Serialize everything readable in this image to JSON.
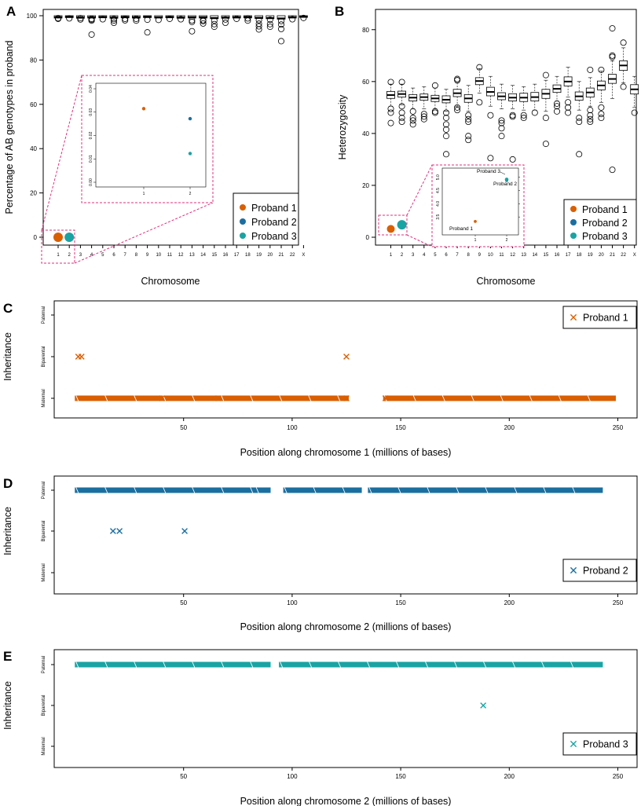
{
  "colors": {
    "proband1": "#D95F02",
    "proband2": "#1B6FA0",
    "proband3": "#1AA3A3",
    "inset_border": "#E0307A"
  },
  "chart_data": [
    {
      "id": "A",
      "type": "box",
      "panel_label": "A",
      "xlabel": "Chromosome",
      "ylabel": "Percentage of AB genotypes in proband",
      "ylim": [
        0,
        100
      ],
      "yticks": [
        0,
        20,
        40,
        60,
        80,
        100
      ],
      "categories": [
        "1",
        "2",
        "3",
        "4",
        "5",
        "6",
        "7",
        "8",
        "9",
        "10",
        "11",
        "12",
        "13",
        "14",
        "15",
        "16",
        "17",
        "18",
        "19",
        "20",
        "21",
        "22",
        "X"
      ],
      "medians": [
        99.3,
        99.5,
        99.2,
        99.3,
        99.4,
        99.2,
        99.4,
        99.3,
        99.5,
        99.3,
        99.4,
        99.2,
        99.3,
        99.3,
        99.0,
        99.2,
        99.3,
        99.4,
        99.1,
        99.0,
        98.8,
        99.3,
        99.6
      ],
      "outliers": [
        [
          98.6,
          98.9
        ],
        [
          98.8
        ],
        [
          98.3,
          98.9
        ],
        [
          97.8,
          98.2,
          98.6,
          91.5
        ],
        [
          98.4
        ],
        [
          98.5,
          96.8,
          97.8
        ],
        [
          98.6,
          97.9
        ],
        [
          98.6,
          97.8
        ],
        [
          98.2,
          92.5
        ],
        [
          98.1
        ],
        [
          98.6
        ],
        [
          98.4
        ],
        [
          97.9,
          97.2,
          93.0
        ],
        [
          98.0,
          96.5,
          97.6
        ],
        [
          97.8,
          96.2,
          95.0
        ],
        [
          98.3,
          96.8
        ],
        [
          98.6
        ],
        [
          98.8,
          97.8
        ],
        [
          98.0,
          96.4,
          95.2,
          93.8
        ],
        [
          98.2,
          96.2,
          95.0
        ],
        [
          97.6,
          96.0,
          94.0,
          88.5
        ],
        [
          98.4
        ],
        [
          99.0
        ]
      ],
      "probands": [
        {
          "name": "Proband 1",
          "chromosome": "1",
          "value": 0.0
        },
        {
          "name": "Proband 3",
          "chromosome": "2",
          "value": 0.0
        }
      ],
      "legend": [
        "Proband 1",
        "Proband 2",
        "Proband 3"
      ],
      "inset": {
        "ylim": [
          0,
          0.04
        ],
        "yticks": [
          "0.00",
          "0.01",
          "0.02",
          "0.03",
          "0.04"
        ],
        "xticks": [
          "1",
          "2"
        ],
        "points": [
          {
            "name": "Proband 1",
            "x": 1,
            "y": 0.0315
          },
          {
            "name": "Proband 2",
            "x": 2,
            "y": 0.0272
          },
          {
            "name": "Proband 3",
            "x": 2,
            "y": 0.0123
          }
        ]
      }
    },
    {
      "id": "B",
      "type": "box",
      "panel_label": "B",
      "xlabel": "Chromosome",
      "ylabel": "Heterozygosity",
      "ylim": [
        0,
        85
      ],
      "yticks": [
        0,
        20,
        40,
        60,
        80
      ],
      "categories": [
        "1",
        "2",
        "3",
        "4",
        "5",
        "6",
        "7",
        "8",
        "9",
        "10",
        "11",
        "12",
        "13",
        "14",
        "15",
        "16",
        "17",
        "18",
        "19",
        "20",
        "21",
        "22",
        "X"
      ],
      "boxes": [
        {
          "q1": 53.5,
          "median": 54.8,
          "q3": 56.2,
          "lo": 50.5,
          "hi": 59.0,
          "out": [
            59.8,
            49.5,
            48.0,
            44.0
          ]
        },
        {
          "q1": 54.0,
          "median": 55.2,
          "q3": 56.3,
          "lo": 51.0,
          "hi": 59.0,
          "out": [
            59.8,
            50.5,
            48.0,
            46.0,
            44.5
          ]
        },
        {
          "q1": 52.5,
          "median": 53.8,
          "q3": 55.0,
          "lo": 49.5,
          "hi": 57.5,
          "out": [
            48.5,
            46.0,
            45.0,
            43.5
          ]
        },
        {
          "q1": 52.8,
          "median": 54.0,
          "q3": 55.2,
          "lo": 49.5,
          "hi": 58.0,
          "out": [
            47.5,
            46.5,
            45.5
          ]
        },
        {
          "q1": 52.3,
          "median": 53.5,
          "q3": 54.7,
          "lo": 49.5,
          "hi": 57.5,
          "out": [
            58.5,
            48.5,
            48.0
          ]
        },
        {
          "q1": 51.8,
          "median": 53.0,
          "q3": 54.5,
          "lo": 48.5,
          "hi": 57.0,
          "out": [
            48.0,
            46.0,
            43.5,
            41.5,
            39.0,
            32.0
          ]
        },
        {
          "q1": 54.2,
          "median": 55.5,
          "q3": 57.0,
          "lo": 50.5,
          "hi": 59.5,
          "out": [
            60.5,
            61.0,
            50.0,
            49.0
          ]
        },
        {
          "q1": 52.0,
          "median": 53.5,
          "q3": 55.0,
          "lo": 48.5,
          "hi": 58.5,
          "out": [
            47.0,
            45.5,
            44.5,
            39.0,
            37.5
          ]
        },
        {
          "q1": 58.8,
          "median": 60.2,
          "q3": 61.5,
          "lo": 55.5,
          "hi": 65.0,
          "out": [
            65.5,
            52.0
          ]
        },
        {
          "q1": 54.5,
          "median": 56.0,
          "q3": 57.8,
          "lo": 50.5,
          "hi": 62.0,
          "out": [
            47.0,
            30.5
          ]
        },
        {
          "q1": 53.0,
          "median": 54.3,
          "q3": 55.7,
          "lo": 49.5,
          "hi": 59.0,
          "out": [
            45.0,
            44.0,
            42.0,
            39.0
          ]
        },
        {
          "q1": 52.5,
          "median": 53.8,
          "q3": 55.3,
          "lo": 49.5,
          "hi": 58.5,
          "out": [
            47.0,
            46.5,
            30.0
          ]
        },
        {
          "q1": 52.3,
          "median": 53.8,
          "q3": 55.5,
          "lo": 49.0,
          "hi": 58.0,
          "out": [
            47.0,
            46.0
          ]
        },
        {
          "q1": 52.5,
          "median": 54.0,
          "q3": 55.8,
          "lo": 49.0,
          "hi": 59.0,
          "out": [
            48.0
          ]
        },
        {
          "q1": 53.5,
          "median": 55.3,
          "q3": 57.0,
          "lo": 48.5,
          "hi": 60.5,
          "out": [
            62.5,
            46.0,
            36.0
          ]
        },
        {
          "q1": 55.8,
          "median": 57.2,
          "q3": 58.7,
          "lo": 52.5,
          "hi": 62.0,
          "out": [
            51.5,
            50.5,
            48.5
          ]
        },
        {
          "q1": 58.3,
          "median": 60.0,
          "q3": 61.8,
          "lo": 54.0,
          "hi": 65.5,
          "out": [
            52.0,
            50.0,
            48.0
          ]
        },
        {
          "q1": 52.8,
          "median": 54.3,
          "q3": 56.0,
          "lo": 49.0,
          "hi": 60.0,
          "out": [
            46.0,
            44.5,
            32.0
          ]
        },
        {
          "q1": 54.0,
          "median": 55.8,
          "q3": 57.5,
          "lo": 50.5,
          "hi": 61.5,
          "out": [
            64.5,
            49.0,
            47.0,
            45.5,
            44.5
          ]
        },
        {
          "q1": 56.8,
          "median": 58.5,
          "q3": 60.2,
          "lo": 52.0,
          "hi": 64.0,
          "out": [
            64.5,
            50.0,
            47.5,
            46.0
          ]
        },
        {
          "q1": 59.3,
          "median": 61.0,
          "q3": 62.8,
          "lo": 53.5,
          "hi": 68.0,
          "out": [
            80.5,
            69.5,
            70.0,
            26.0
          ]
        },
        {
          "q1": 64.3,
          "median": 66.2,
          "q3": 68.0,
          "lo": 59.5,
          "hi": 73.0,
          "out": [
            75.0,
            58.0
          ]
        },
        {
          "q1": 55.2,
          "median": 57.0,
          "q3": 58.8,
          "lo": 50.0,
          "hi": 62.0,
          "out": [
            48.0
          ]
        }
      ],
      "probands": [
        {
          "name": "Proband 1",
          "chromosome": "1",
          "value": 3.2
        },
        {
          "name": "Proband 3",
          "chromosome": "2",
          "value": 4.8
        }
      ],
      "legend": [
        "Proband 1",
        "Proband 2",
        "Proband 3"
      ],
      "inset": {
        "xticks": [
          "1",
          "2"
        ],
        "yticks": [
          "3.5",
          "4.0",
          "4.5",
          "5.0"
        ],
        "ylim": [
          3.0,
          5.2
        ],
        "points": [
          {
            "name": "Proband 1",
            "x": 1,
            "y": 3.33
          },
          {
            "name": "Proband 2",
            "x": 2,
            "y": 4.88
          },
          {
            "name": "Proband 3",
            "x": 2,
            "y": 4.92
          }
        ],
        "labels": [
          "Proband 1",
          "Proband 3",
          "Proband 2"
        ]
      }
    },
    {
      "id": "C",
      "type": "scatter",
      "panel_label": "C",
      "xlabel": "Position along chromosome 1 (millions of bases)",
      "ylabel": "Inheritance",
      "xticks": [
        50,
        100,
        150,
        200,
        250
      ],
      "xlim": [
        -5,
        255
      ],
      "categories": [
        "Maternal",
        "Biparental",
        "Paternal"
      ],
      "legend": "Proband 1",
      "color_key": "proband1",
      "legend_position": "top-right",
      "segments": [
        {
          "category": "Maternal",
          "start": 1,
          "end": 125
        },
        {
          "category": "Maternal",
          "start": 143,
          "end": 248
        }
      ],
      "points": [
        {
          "x": 1.5,
          "category": "Biparental"
        },
        {
          "x": 3.0,
          "category": "Biparental"
        },
        {
          "x": 125,
          "category": "Biparental"
        },
        {
          "x": 40,
          "category": "Maternal"
        },
        {
          "x": 66,
          "category": "Maternal"
        },
        {
          "x": 125,
          "category": "Maternal"
        },
        {
          "x": 143,
          "category": "Maternal"
        }
      ],
      "gaps": [
        [
          125,
          143
        ]
      ]
    },
    {
      "id": "D",
      "type": "scatter",
      "panel_label": "D",
      "xlabel": "Position along chromosome 2 (millions of bases)",
      "ylabel": "Inheritance",
      "xticks": [
        50,
        100,
        150,
        200,
        250
      ],
      "xlim": [
        -5,
        255
      ],
      "categories": [
        "Maternal",
        "Biparental",
        "Paternal"
      ],
      "legend": "Proband 2",
      "color_key": "proband2",
      "legend_position": "bottom-right",
      "segments": [
        {
          "category": "Paternal",
          "start": 1,
          "end": 82
        },
        {
          "category": "Paternal",
          "start": 84,
          "end": 89
        },
        {
          "category": "Paternal",
          "start": 97,
          "end": 131
        },
        {
          "category": "Paternal",
          "start": 136,
          "end": 242
        }
      ],
      "points": [
        {
          "x": 17.5,
          "category": "Biparental"
        },
        {
          "x": 20.5,
          "category": "Biparental"
        },
        {
          "x": 50.5,
          "category": "Biparental"
        }
      ]
    },
    {
      "id": "E",
      "type": "scatter",
      "panel_label": "E",
      "xlabel": "Position along chromosome 2 (millions of bases)",
      "ylabel": "Inheritance",
      "xticks": [
        50,
        100,
        150,
        200,
        250
      ],
      "xlim": [
        -5,
        255
      ],
      "categories": [
        "Maternal",
        "Biparental",
        "Paternal"
      ],
      "legend": "Proband 3",
      "color_key": "proband3",
      "legend_position": "bottom-right",
      "segments": [
        {
          "category": "Paternal",
          "start": 1,
          "end": 89
        },
        {
          "category": "Paternal",
          "start": 95,
          "end": 242
        }
      ],
      "points": [
        {
          "x": 188,
          "category": "Biparental"
        }
      ]
    }
  ]
}
